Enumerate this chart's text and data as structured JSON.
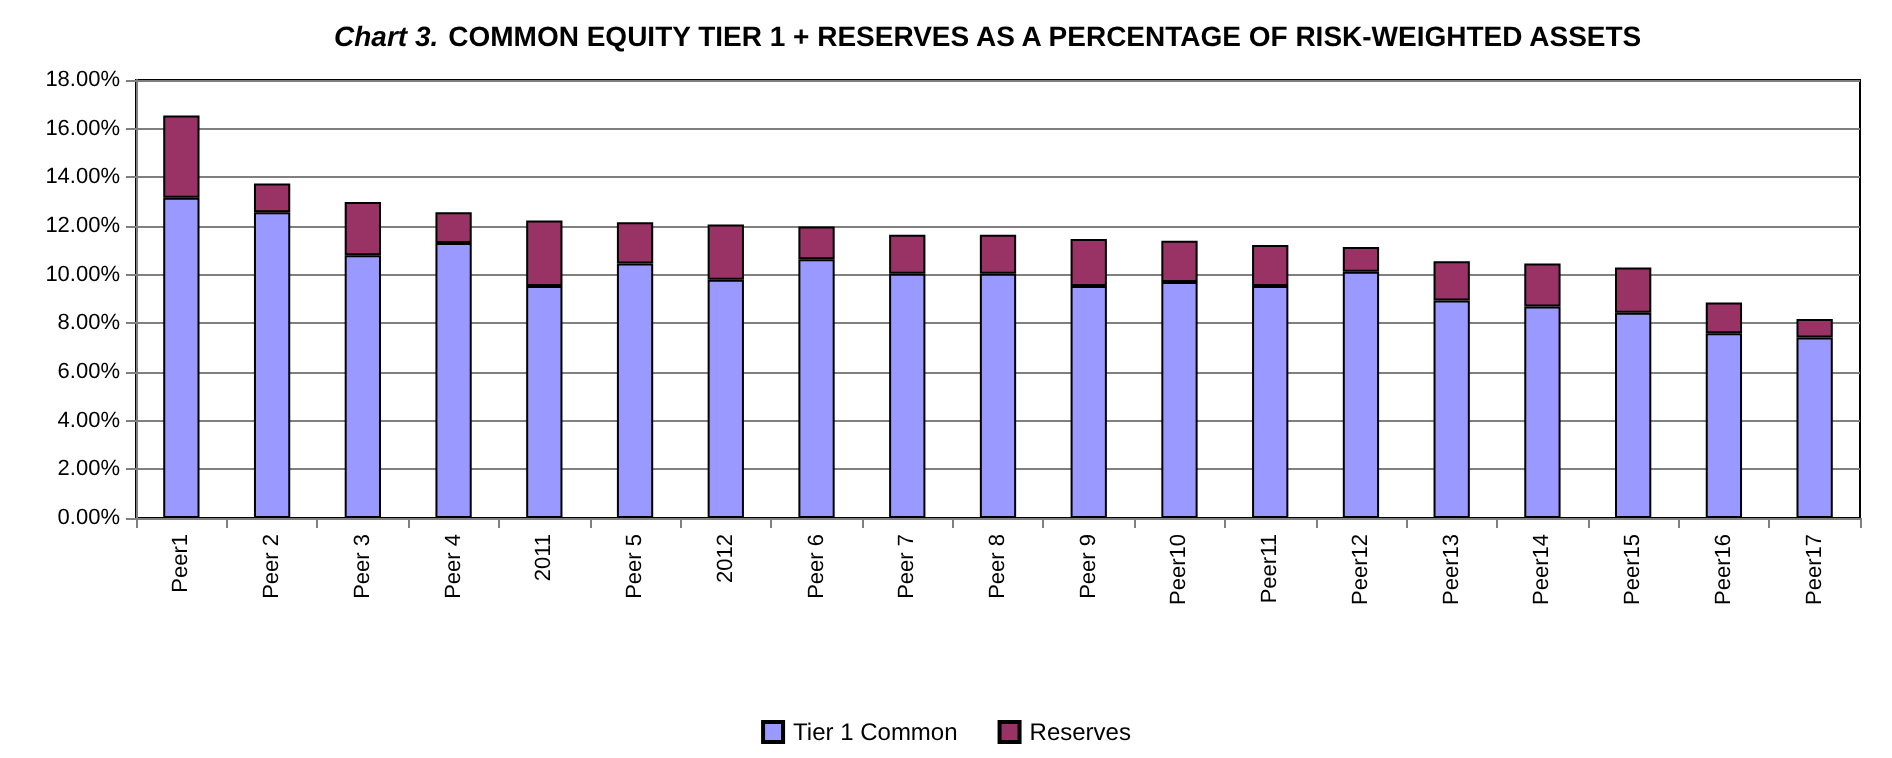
{
  "chart_data": {
    "type": "bar",
    "title": "Chart 3. COMMON EQUITY TIER 1 + RESERVES AS A PERCENTAGE OF RISK-WEIGHTED ASSETS",
    "categories": [
      "Peer1",
      "Peer 2",
      "Peer 3",
      "Peer 4",
      "2011",
      "Peer 5",
      "2012",
      "Peer 6",
      "Peer 7",
      "Peer 8",
      "Peer 9",
      "Peer10",
      "Peer11",
      "Peer12",
      "Peer13",
      "Peer14",
      "Peer15",
      "Peer16",
      "Peer17"
    ],
    "series": [
      {
        "name": "Tier 1 Common",
        "color": "#9999ff",
        "values": [
          13.16,
          12.57,
          10.8,
          11.3,
          9.53,
          10.46,
          9.79,
          10.63,
          10.04,
          10.04,
          9.53,
          9.7,
          9.53,
          10.12,
          8.94,
          8.69,
          8.44,
          7.59,
          7.42
        ]
      },
      {
        "name": "Reserves",
        "color": "#993366",
        "values": [
          3.38,
          1.18,
          2.19,
          1.27,
          2.7,
          1.69,
          2.27,
          1.35,
          1.6,
          1.6,
          1.94,
          1.69,
          1.69,
          1.02,
          1.61,
          1.77,
          1.85,
          1.27,
          0.76
        ]
      }
    ],
    "stacked": true,
    "ylim": [
      0,
      18
    ],
    "yticks": [
      {
        "value": 0,
        "label": "0.00%"
      },
      {
        "value": 2,
        "label": "2.00%"
      },
      {
        "value": 4,
        "label": "4.00%"
      },
      {
        "value": 6,
        "label": "6.00%"
      },
      {
        "value": 8,
        "label": "8.00%"
      },
      {
        "value": 10,
        "label": "10.00%"
      },
      {
        "value": 12,
        "label": "12.00%"
      },
      {
        "value": 14,
        "label": "14.00%"
      },
      {
        "value": 16,
        "label": "16.00%"
      },
      {
        "value": 18,
        "label": "18.00%"
      }
    ],
    "grid": "y",
    "legend": "bottom"
  }
}
